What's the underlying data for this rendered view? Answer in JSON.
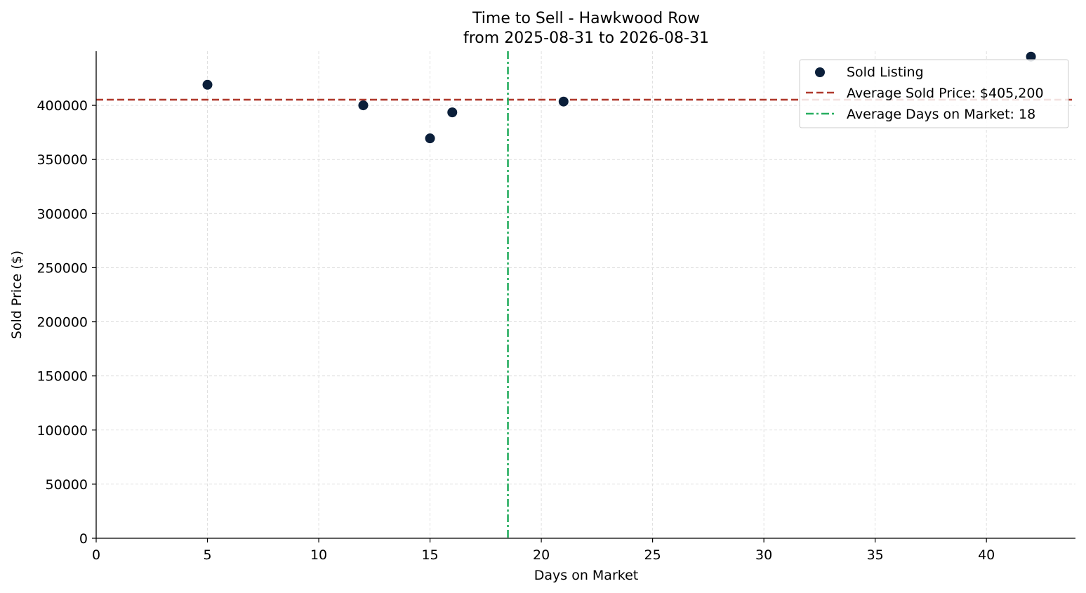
{
  "chart_data": {
    "type": "scatter",
    "title": "Time to Sell - Hawkwood Row",
    "subtitle": "from 2025-08-31 to 2026-08-31",
    "xlabel": "Days on Market",
    "ylabel": "Sold Price ($)",
    "xlim": [
      0,
      44
    ],
    "ylim": [
      0,
      450000
    ],
    "x_ticks": [
      0,
      5,
      10,
      15,
      20,
      25,
      30,
      35,
      40
    ],
    "y_ticks": [
      0,
      50000,
      100000,
      150000,
      200000,
      250000,
      300000,
      350000,
      400000
    ],
    "grid": true,
    "series": [
      {
        "name": "Sold Listing",
        "color": "#0b1f3a",
        "points": [
          {
            "x": 5,
            "y": 419000
          },
          {
            "x": 12,
            "y": 400000
          },
          {
            "x": 15,
            "y": 369500
          },
          {
            "x": 16,
            "y": 393500
          },
          {
            "x": 21,
            "y": 403500
          },
          {
            "x": 42,
            "y": 445000
          }
        ]
      }
    ],
    "reference_lines": {
      "avg_price": {
        "value": 405200,
        "label": "Average Sold Price: $405,200",
        "color": "#b03a2e",
        "style": "dashed"
      },
      "avg_days": {
        "value": 18.5,
        "label": "Average Days on Market: 18",
        "color": "#27ae60",
        "style": "dash-dot"
      }
    },
    "legend_position": "top-right"
  }
}
